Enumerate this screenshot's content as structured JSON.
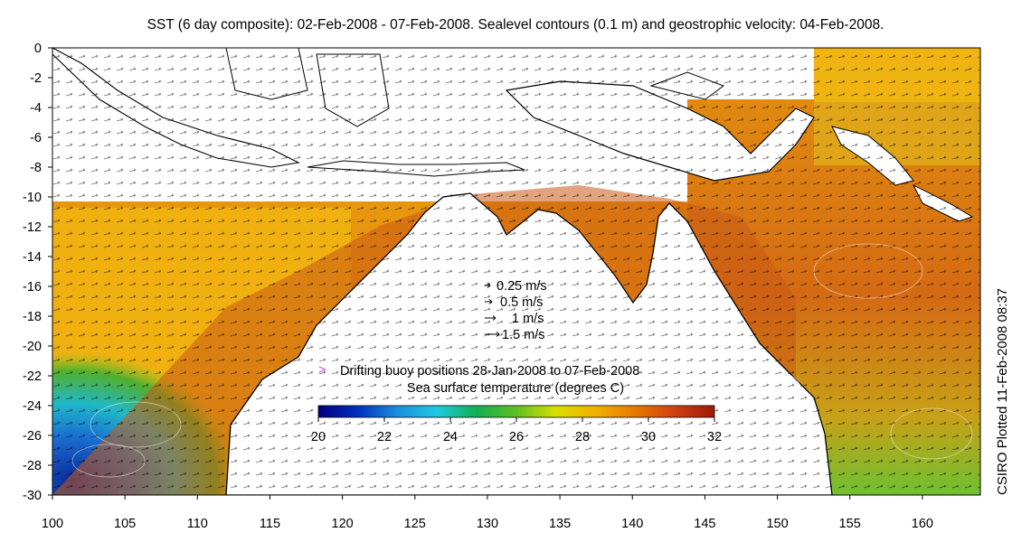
{
  "title": "SST (6 day composite): 02-Feb-2008 - 07-Feb-2008. Sealevel contours (0.1 m) and geostrophic velocity: 04-Feb-2008.",
  "credit": "CSIRO Plotted 11-Feb-2008 08:37",
  "map": {
    "lon_range": [
      100,
      164
    ],
    "lat_range": [
      -30,
      0
    ],
    "lon_ticks": [
      100,
      105,
      110,
      115,
      120,
      125,
      130,
      135,
      140,
      145,
      150,
      155,
      160
    ],
    "lat_ticks": [
      0,
      -2,
      -4,
      -6,
      -8,
      -10,
      -12,
      -14,
      -16,
      -18,
      -20,
      -22,
      -24,
      -26,
      -28,
      -30
    ],
    "land_color": "#ffffff",
    "coast_color": "#000000"
  },
  "velocity_legend": [
    {
      "label": "0.25 m/s",
      "speed": 0.25
    },
    {
      "label": "0.5 m/s",
      "speed": 0.5
    },
    {
      "label": "1 m/s",
      "speed": 1
    },
    {
      "label": "1.5 m/s",
      "speed": 1.5
    }
  ],
  "buoy_legend": {
    "label": "Drifting buoy positions 28-Jan-2008 to 07-Feb-2008",
    "color": "#e040e0"
  },
  "colorbar": {
    "title": "Sea surface temperature (degrees C)",
    "min": 20,
    "max": 32,
    "ticks": [
      20,
      22,
      24,
      26,
      28,
      30,
      32
    ],
    "colors": [
      "#000080",
      "#0030c0",
      "#1a8fe0",
      "#20c8e0",
      "#10b050",
      "#60c020",
      "#d8e000",
      "#f0b000",
      "#e87800",
      "#d04010",
      "#a01808"
    ]
  }
}
